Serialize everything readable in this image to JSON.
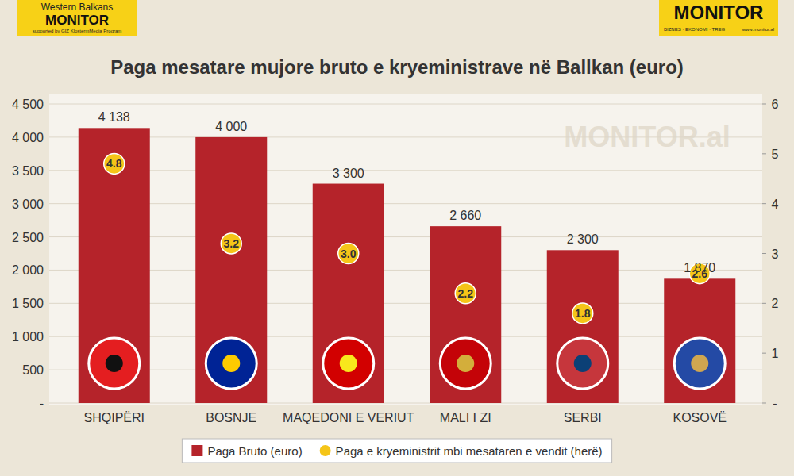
{
  "chart_data": {
    "type": "bar",
    "title": "Paga mesatare mujore bruto e kryeministrave në Ballkan (euro)",
    "categories": [
      "SHQIPËRI",
      "BOSNJE",
      "MAQEDONI E VERIUT",
      "MALI I ZI",
      "SERBI",
      "KOSOVË"
    ],
    "series": [
      {
        "name": "Paga Bruto (euro)",
        "type": "bar",
        "color": "#b5232a",
        "values": [
          4138,
          4000,
          3300,
          2660,
          2300,
          1870
        ],
        "value_labels": [
          "4 138",
          "4 000",
          "3 300",
          "2 660",
          "2 300",
          "1 870"
        ]
      },
      {
        "name": "Paga e kryeministrit mbi mesataren e vendit (herë)",
        "type": "scatter",
        "axis": "y2",
        "marker": "circle",
        "color": "#f5c518",
        "values": [
          4.8,
          3.2,
          3.0,
          2.2,
          1.8,
          2.6
        ],
        "value_labels": [
          "4.8",
          "3.2",
          "3.0",
          "2.2",
          "1.8",
          "2.6"
        ]
      }
    ],
    "ylim": [
      0,
      4500
    ],
    "yticks": [
      {
        "value": 0,
        "label": "-"
      },
      500,
      {
        "value": 1000,
        "label": "1 000"
      },
      {
        "value": 1500,
        "label": "1 500"
      },
      {
        "value": 2000,
        "label": "2 000"
      },
      {
        "value": 2500,
        "label": "2 500"
      },
      {
        "value": 3000,
        "label": "3 000"
      },
      {
        "value": 3500,
        "label": "3 500"
      },
      {
        "value": 4000,
        "label": "4 000"
      },
      {
        "value": 4500,
        "label": "4 500"
      }
    ],
    "y2lim": [
      0,
      6
    ],
    "y2ticks": [
      {
        "value": 0,
        "label": "-"
      },
      1,
      2,
      3,
      4,
      5,
      6
    ],
    "grid": true,
    "legend": "bottom",
    "data_labels": true,
    "annotations": [
      "Western Balkans",
      "MONITOR",
      "supported by GIZ KlostermMedia Program",
      "MONITOR",
      "BIZNES · EKONOMI · TREG",
      "www.monitor.al",
      "MONITOR.al"
    ]
  }
}
